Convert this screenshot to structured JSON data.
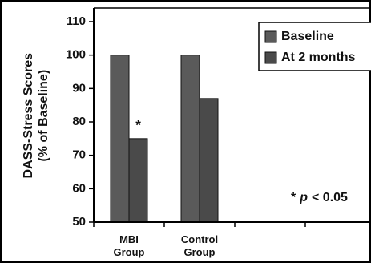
{
  "chart_data": {
    "type": "bar",
    "y_label": "DASS-Stress Scores\n(% of Baseline)",
    "categories": [
      "MBI\nGroup",
      "Control\nGroup"
    ],
    "series": [
      {
        "name": "Baseline",
        "color": "#5a5a5a",
        "values": [
          100,
          100
        ]
      },
      {
        "name": "At 2 months",
        "color": "#4a4a4a",
        "values": [
          75,
          87
        ]
      }
    ],
    "ylim": [
      50,
      110
    ],
    "yticks": [
      50,
      60,
      70,
      80,
      90,
      100,
      110
    ],
    "legend": "upper right",
    "significance_marker": "*",
    "note": [
      "*",
      "p",
      "< 0.05"
    ]
  }
}
